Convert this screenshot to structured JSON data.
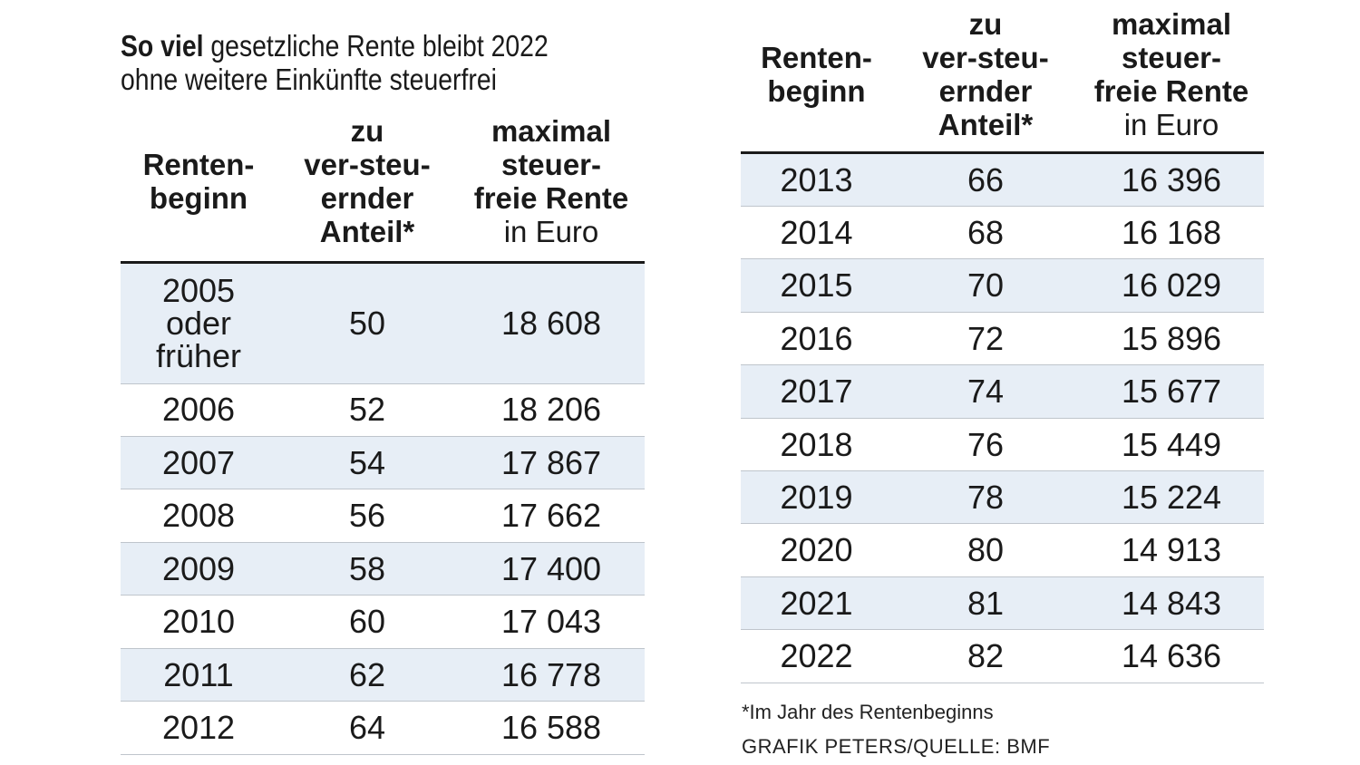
{
  "title": {
    "bold": "So viel",
    "line1_rest": "gesetzliche Rente bleibt 2022",
    "line2": "ohne weitere Einkünfte steuerfrei"
  },
  "headers": {
    "col1": [
      "Renten-",
      "beginn"
    ],
    "col2": [
      "zu",
      "ver-steu-",
      "ernder",
      "Anteil*"
    ],
    "col3_bold": [
      "maximal",
      "steuer-",
      "freie Rente"
    ],
    "col3_light": "in Euro"
  },
  "chart_data": {
    "type": "table",
    "columns": [
      "Rentenbeginn",
      "zu versteuernder Anteil*",
      "maximal steuerfreie Rente in Euro"
    ],
    "rows": [
      {
        "year": "2005 oder früher",
        "year_lines": [
          "2005",
          "oder",
          "früher"
        ],
        "share": "50",
        "amount": "18 608"
      },
      {
        "year": "2006",
        "share": "52",
        "amount": "18 206"
      },
      {
        "year": "2007",
        "share": "54",
        "amount": "17 867"
      },
      {
        "year": "2008",
        "share": "56",
        "amount": "17 662"
      },
      {
        "year": "2009",
        "share": "58",
        "amount": "17 400"
      },
      {
        "year": "2010",
        "share": "60",
        "amount": "17 043"
      },
      {
        "year": "2011",
        "share": "62",
        "amount": "16 778"
      },
      {
        "year": "2012",
        "share": "64",
        "amount": "16 588"
      },
      {
        "year": "2013",
        "share": "66",
        "amount": "16 396"
      },
      {
        "year": "2014",
        "share": "68",
        "amount": "16 168"
      },
      {
        "year": "2015",
        "share": "70",
        "amount": "16 029"
      },
      {
        "year": "2016",
        "share": "72",
        "amount": "15 896"
      },
      {
        "year": "2017",
        "share": "74",
        "amount": "15 677"
      },
      {
        "year": "2018",
        "share": "76",
        "amount": "15 449"
      },
      {
        "year": "2019",
        "share": "78",
        "amount": "15 224"
      },
      {
        "year": "2020",
        "share": "80",
        "amount": "14 913"
      },
      {
        "year": "2021",
        "share": "81",
        "amount": "14 843"
      },
      {
        "year": "2022",
        "share": "82",
        "amount": "14 636"
      }
    ]
  },
  "footnote": "*Im Jahr des Rentenbeginns",
  "source": "GRAFIK PETERS/QUELLE: BMF",
  "colors": {
    "shade": "#e7eef6",
    "rule": "#1a1a1a",
    "divider": "#bfc5cc"
  }
}
